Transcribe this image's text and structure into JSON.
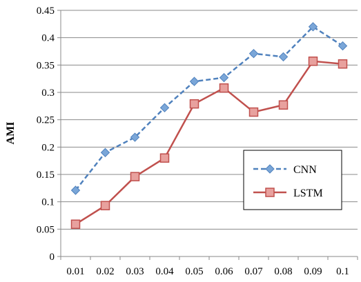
{
  "chart_data": {
    "type": "line",
    "title": "",
    "xlabel": "",
    "ylabel": "AMI",
    "categories": [
      "0.01",
      "0.02",
      "0.03",
      "0.04",
      "0.05",
      "0.06",
      "0.07",
      "0.08",
      "0.09",
      "0.1"
    ],
    "y_ticks": [
      "0",
      "0.05",
      "0.1",
      "0.15",
      "0.2",
      "0.25",
      "0.3",
      "0.35",
      "0.4",
      "0.45"
    ],
    "ylim": [
      0,
      0.45
    ],
    "grid": "horizontal",
    "legend_position": "right-middle",
    "series": [
      {
        "name": "CNN",
        "values": [
          0.121,
          0.19,
          0.218,
          0.272,
          0.32,
          0.327,
          0.371,
          0.365,
          0.42,
          0.385
        ],
        "color": "#4f81bd",
        "line_style": "dashed",
        "marker": "diamond"
      },
      {
        "name": "LSTM",
        "values": [
          0.059,
          0.093,
          0.146,
          0.18,
          0.279,
          0.308,
          0.264,
          0.277,
          0.357,
          0.352
        ],
        "color": "#c0504d",
        "line_style": "solid",
        "marker": "square"
      }
    ]
  }
}
